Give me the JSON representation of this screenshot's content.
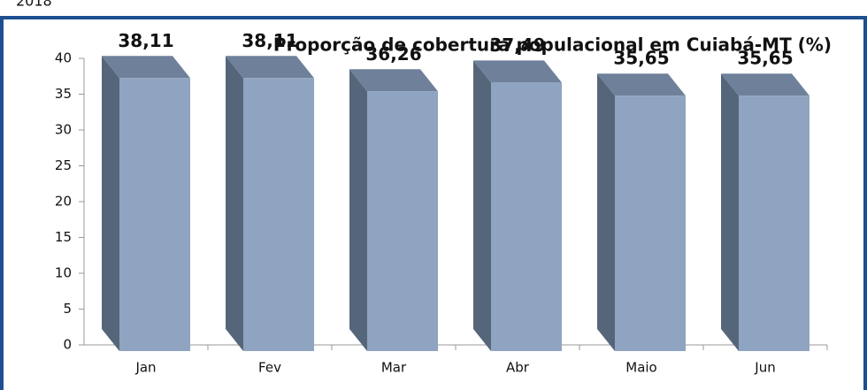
{
  "header": {
    "year": "2018"
  },
  "chart_data": {
    "type": "bar3d",
    "title": "Proporção de cobertura populacional em Cuiabá-MT (%)",
    "categories": [
      "Jan",
      "Fev",
      "Mar",
      "Abr",
      "Maio",
      "Jun"
    ],
    "values": [
      38.11,
      38.11,
      36.26,
      37.49,
      35.65,
      35.65
    ],
    "value_labels": [
      "38,11",
      "38,11",
      "36,26",
      "37,49",
      "35,65",
      "35,65"
    ],
    "color": "#8fa4c0",
    "ylim": [
      0,
      40
    ],
    "yticks": [
      0,
      5,
      10,
      15,
      20,
      25,
      30,
      35,
      40
    ]
  }
}
